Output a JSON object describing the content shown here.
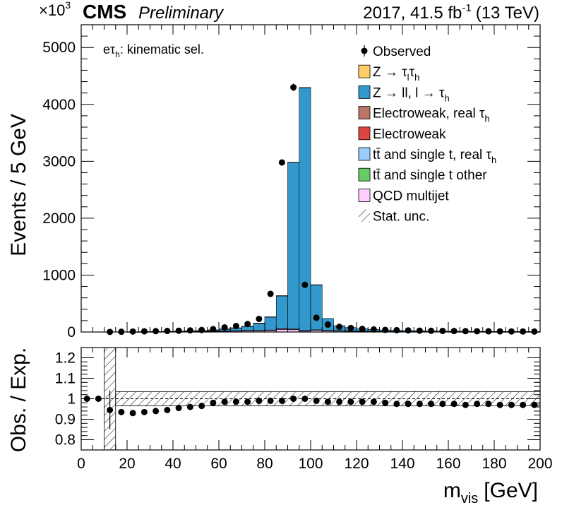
{
  "chart_data": [
    {
      "type": "bar",
      "stacked": true,
      "experiment": "CMS",
      "status": "Preliminary",
      "lumi_text": "2017, 41.5 fb",
      "lumi_superscript": "-1",
      "energy_text": "(13 TeV)",
      "category_label": "eτ",
      "category_label_sub": "h",
      "category_label_rest": ": kinematic sel.",
      "ylabel": "Events / 5 GeV",
      "y_multiplier_text": "×10",
      "y_multiplier_exp": "3",
      "ylim": [
        0,
        5400
      ],
      "xlim": [
        0,
        200
      ],
      "y_ticks": [
        "0",
        "1000",
        "2000",
        "3000",
        "4000",
        "5000"
      ],
      "bin_edges": [
        10,
        15,
        20,
        25,
        30,
        35,
        40,
        45,
        50,
        55,
        60,
        65,
        70,
        75,
        80,
        85,
        90,
        95,
        100,
        105,
        110,
        115,
        120,
        125,
        130,
        135,
        140,
        145,
        150,
        155,
        160,
        165,
        170,
        175,
        180,
        185,
        190,
        195,
        200
      ],
      "legend": [
        {
          "key": "observed",
          "label": "Observed",
          "marker": "point"
        },
        {
          "key": "ztt",
          "label_parts": [
            "Z → τ",
            "l",
            "τ",
            "h"
          ],
          "color": "#ffcc66"
        },
        {
          "key": "zll",
          "label_parts": [
            "Z → ll, l → τ",
            "h"
          ],
          "color": "#3399cc"
        },
        {
          "key": "ewk_real",
          "label_parts": [
            "Electroweak, real  τ",
            "h"
          ],
          "color": "#bb7766"
        },
        {
          "key": "ewk",
          "label": "Electroweak",
          "color": "#dd4444"
        },
        {
          "key": "tt_real",
          "label_parts": [
            "tt̄ and single t, real  τ",
            "h"
          ],
          "color": "#99ccff"
        },
        {
          "key": "tt_other",
          "label": "tt̄ and single t other",
          "color": "#66cc66"
        },
        {
          "key": "qcd",
          "label": "QCD multijet",
          "color": "#ffccff"
        },
        {
          "key": "stat",
          "label": "Stat. unc.",
          "marker": "hatch"
        }
      ],
      "series": [
        {
          "key": "qcd",
          "values": [
            0,
            0,
            1,
            2,
            3,
            4,
            5,
            6,
            8,
            10,
            12,
            15,
            18,
            20,
            25,
            45,
            40,
            15,
            30,
            20,
            15,
            12,
            10,
            8,
            7,
            6,
            5,
            5,
            4,
            4,
            3,
            3,
            3,
            2,
            2,
            2,
            2,
            2
          ]
        },
        {
          "key": "ewk",
          "values": [
            0,
            0,
            0,
            1,
            1,
            2,
            2,
            3,
            4,
            5,
            6,
            7,
            8,
            9,
            10,
            12,
            12,
            10,
            9,
            8,
            7,
            6,
            5,
            5,
            4,
            4,
            3,
            3,
            3,
            2,
            2,
            2,
            2,
            2,
            2,
            1,
            1,
            1
          ]
        },
        {
          "key": "zll",
          "values": [
            0,
            0,
            2,
            3,
            4,
            5,
            6,
            8,
            10,
            20,
            35,
            50,
            75,
            125,
            230,
            580,
            2930,
            4270,
            790,
            210,
            90,
            60,
            42,
            32,
            25,
            20,
            16,
            14,
            12,
            10,
            9,
            8,
            7,
            6,
            6,
            5,
            5,
            4
          ]
        },
        {
          "key": "ztt",
          "values": [
            0,
            0,
            0,
            0,
            0,
            0,
            1,
            1,
            1,
            1,
            1,
            1,
            1,
            1,
            1,
            1,
            1,
            1,
            1,
            0,
            0,
            0,
            0,
            0,
            0,
            0,
            0,
            0,
            0,
            0,
            0,
            0,
            0,
            0,
            0,
            0,
            0,
            0
          ]
        }
      ],
      "observed": [
        2,
        4,
        8,
        12,
        15,
        18,
        22,
        28,
        35,
        50,
        80,
        105,
        140,
        230,
        670,
        2980,
        4300,
        830,
        250,
        130,
        90,
        70,
        55,
        45,
        38,
        32,
        28,
        24,
        21,
        19,
        17,
        15,
        13,
        12,
        11,
        10,
        9,
        8
      ],
      "ratio_panel": {
        "ylabel": "Obs. / Exp.",
        "ylim": [
          0.75,
          1.25
        ],
        "y_ticks": [
          "0.8",
          "0.9",
          "1",
          "1.1",
          "1.2"
        ],
        "x_points": [
          2.5,
          7.5,
          12.5,
          17.5,
          22.5,
          27.5,
          32.5,
          37.5,
          42.5,
          47.5,
          52.5,
          57.5,
          62.5,
          67.5,
          72.5,
          77.5,
          82.5,
          87.5,
          92.5,
          97.5,
          102.5,
          107.5,
          112.5,
          117.5,
          122.5,
          127.5,
          132.5,
          137.5,
          142.5,
          147.5,
          152.5,
          157.5,
          162.5,
          167.5,
          172.5,
          177.5,
          182.5,
          187.5,
          192.5,
          197.5
        ],
        "ratios": [
          1.0,
          1.0,
          0.945,
          0.935,
          0.93,
          0.935,
          0.94,
          0.945,
          0.955,
          0.96,
          0.965,
          0.98,
          0.985,
          0.985,
          0.985,
          0.99,
          0.99,
          0.99,
          1.0,
          1.0,
          0.99,
          0.985,
          0.985,
          0.985,
          0.985,
          0.985,
          0.98,
          0.975,
          0.975,
          0.975,
          0.975,
          0.975,
          0.975,
          0.97,
          0.975,
          0.975,
          0.97,
          0.97,
          0.97,
          0.97
        ],
        "error_bar_index": 2,
        "error_bar_half": 0.095,
        "stat_band": [
          {
            "xmin": 10,
            "xmax": 15,
            "ymin": 0.75,
            "ymax": 1.25
          },
          {
            "xmin": 15,
            "xmax": 200,
            "ymin": 0.965,
            "ymax": 1.035
          }
        ],
        "xlabel": "m",
        "xlabel_sub": "vis",
        "xlabel_unit": "[GeV]",
        "x_ticks": [
          "0",
          "20",
          "40",
          "60",
          "80",
          "100",
          "120",
          "140",
          "160",
          "180",
          "200"
        ]
      }
    }
  ]
}
